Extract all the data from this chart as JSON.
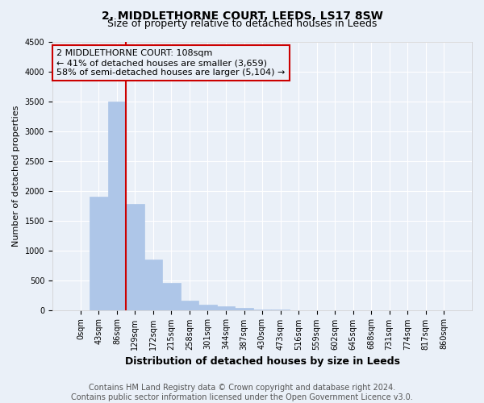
{
  "title_line1": "2, MIDDLETHORNE COURT, LEEDS, LS17 8SW",
  "title_line2": "Size of property relative to detached houses in Leeds",
  "xlabel": "Distribution of detached houses by size in Leeds",
  "ylabel": "Number of detached properties",
  "bar_labels": [
    "0sqm",
    "43sqm",
    "86sqm",
    "129sqm",
    "172sqm",
    "215sqm",
    "258sqm",
    "301sqm",
    "344sqm",
    "387sqm",
    "430sqm",
    "473sqm",
    "516sqm",
    "559sqm",
    "602sqm",
    "645sqm",
    "688sqm",
    "731sqm",
    "774sqm",
    "817sqm",
    "860sqm"
  ],
  "bar_values": [
    0,
    1900,
    3500,
    1780,
    850,
    450,
    155,
    90,
    55,
    30,
    10,
    5,
    0,
    0,
    0,
    0,
    0,
    0,
    0,
    0,
    0
  ],
  "bar_color": "#aec6e8",
  "bar_edge_color": "#aec6e8",
  "vline_color": "#cc0000",
  "annotation_line1": "2 MIDDLETHORNE COURT: 108sqm",
  "annotation_line2": "← 41% of detached houses are smaller (3,659)",
  "annotation_line3": "58% of semi-detached houses are larger (5,104) →",
  "annotation_box_color": "#cc0000",
  "annotation_bg_color": "#eaf0f8",
  "ylim": [
    0,
    4500
  ],
  "yticks": [
    0,
    500,
    1000,
    1500,
    2000,
    2500,
    3000,
    3500,
    4000,
    4500
  ],
  "bg_color": "#eaf0f8",
  "footer_line1": "Contains HM Land Registry data © Crown copyright and database right 2024.",
  "footer_line2": "Contains public sector information licensed under the Open Government Licence v3.0.",
  "title_fontsize": 10,
  "subtitle_fontsize": 9,
  "axis_label_fontsize": 9,
  "ylabel_fontsize": 8,
  "tick_fontsize": 7,
  "annotation_fontsize": 8,
  "footer_fontsize": 7
}
